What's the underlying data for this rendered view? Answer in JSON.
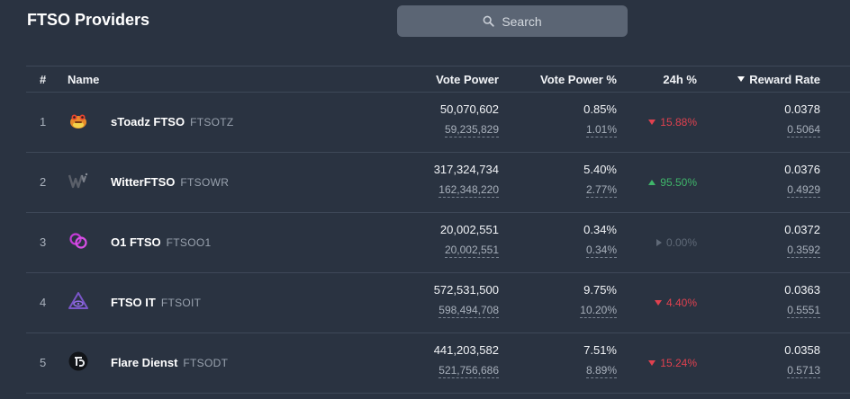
{
  "page": {
    "title": "FTSO Providers"
  },
  "search": {
    "placeholder": "Search"
  },
  "table": {
    "headers": {
      "num": "#",
      "name": "Name",
      "vote_power": "Vote Power",
      "vote_power_pct": "Vote Power %",
      "change_24h": "24h %",
      "reward_rate": "Reward Rate"
    },
    "sorted_by": "reward_rate",
    "sort_direction": "desc",
    "rows": [
      {
        "num": "1",
        "name": "sToadz FTSO",
        "ticker": "FTSOTZ",
        "logo": "toad-logo-icon",
        "vote_power": "50,070,602",
        "vote_power_sub": "59,235,829",
        "vote_power_pct": "0.85%",
        "vote_power_pct_sub": "1.01%",
        "change_24h": "15.88%",
        "change_dir": "down",
        "reward_rate": "0.0378",
        "reward_rate_sub": "0.5064"
      },
      {
        "num": "2",
        "name": "WitterFTSO",
        "ticker": "FTSOWR",
        "logo": "witter-logo-icon",
        "vote_power": "317,324,734",
        "vote_power_sub": "162,348,220",
        "vote_power_pct": "5.40%",
        "vote_power_pct_sub": "2.77%",
        "change_24h": "95.50%",
        "change_dir": "up",
        "reward_rate": "0.0376",
        "reward_rate_sub": "0.4929"
      },
      {
        "num": "3",
        "name": "O1 FTSO",
        "ticker": "FTSOO1",
        "logo": "linked-rings-logo-icon",
        "vote_power": "20,002,551",
        "vote_power_sub": "20,002,551",
        "vote_power_pct": "0.34%",
        "vote_power_pct_sub": "0.34%",
        "change_24h": "0.00%",
        "change_dir": "flat",
        "reward_rate": "0.0372",
        "reward_rate_sub": "0.3592"
      },
      {
        "num": "4",
        "name": "FTSO IT",
        "ticker": "FTSOIT",
        "logo": "triangle-eye-logo-icon",
        "vote_power": "572,531,500",
        "vote_power_sub": "598,494,708",
        "vote_power_pct": "9.75%",
        "vote_power_pct_sub": "10.20%",
        "change_24h": "4.40%",
        "change_dir": "down",
        "reward_rate": "0.0363",
        "reward_rate_sub": "0.5551"
      },
      {
        "num": "5",
        "name": "Flare Dienst",
        "ticker": "FTSODT",
        "logo": "flare-dienst-logo-icon",
        "vote_power": "441,203,582",
        "vote_power_sub": "521,756,686",
        "vote_power_pct": "7.51%",
        "vote_power_pct_sub": "8.89%",
        "change_24h": "15.24%",
        "change_dir": "down",
        "reward_rate": "0.0358",
        "reward_rate_sub": "0.5713"
      }
    ]
  },
  "colors": {
    "background": "#2a3341",
    "search_bg": "#5b6574",
    "down": "#e0414f",
    "up": "#3fb66a",
    "flat": "#5f6977"
  }
}
